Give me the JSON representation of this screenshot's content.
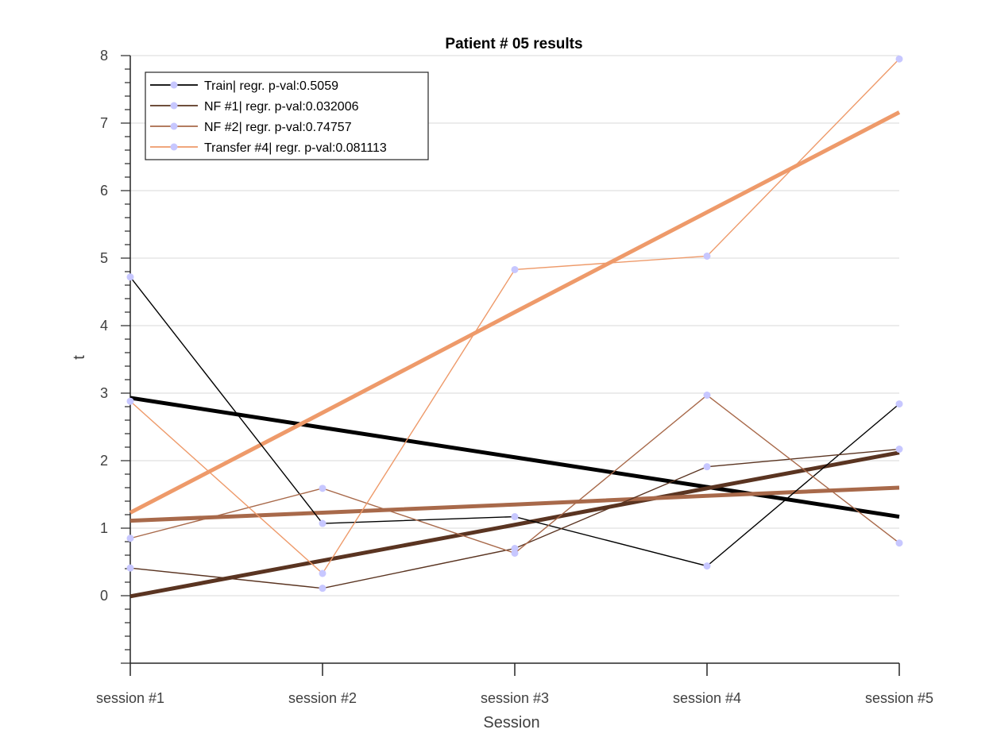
{
  "chart_data": {
    "type": "line",
    "title": "Patient # 05  results",
    "xlabel": "Session",
    "ylabel": "t",
    "categories": [
      "session #1",
      "session #2",
      "session #3",
      "session #4",
      "session #5"
    ],
    "ylim": [
      -1,
      8
    ],
    "yticks": [
      0,
      1,
      2,
      3,
      4,
      5,
      6,
      7,
      8
    ],
    "grid": "horizontal",
    "legend_position": "top-left",
    "marker_color": "#c7c7ff",
    "series": [
      {
        "name": "Train| regr. p-val:0.5059",
        "color": "#000000",
        "values": [
          4.72,
          1.07,
          1.17,
          0.44,
          2.84
        ],
        "regression": [
          2.93,
          2.49,
          2.05,
          1.61,
          1.17
        ]
      },
      {
        "name": "NF #1| regr. p-val:0.032006",
        "color": "#5a3421",
        "values": [
          0.41,
          0.11,
          0.7,
          1.91,
          2.17
        ],
        "regression": [
          -0.01,
          0.52,
          1.05,
          1.59,
          2.12
        ]
      },
      {
        "name": "NF #2| regr. p-val:0.74757",
        "color": "#a8694a",
        "values": [
          0.85,
          1.59,
          0.63,
          2.97,
          0.78
        ],
        "regression": [
          1.11,
          1.23,
          1.35,
          1.48,
          1.6
        ]
      },
      {
        "name": "Transfer #4| regr. p-val:0.081113",
        "color": "#ee9a6a",
        "values": [
          2.88,
          0.33,
          4.83,
          5.03,
          7.95
        ],
        "regression": [
          1.23,
          2.71,
          4.2,
          5.68,
          7.16
        ]
      }
    ]
  }
}
